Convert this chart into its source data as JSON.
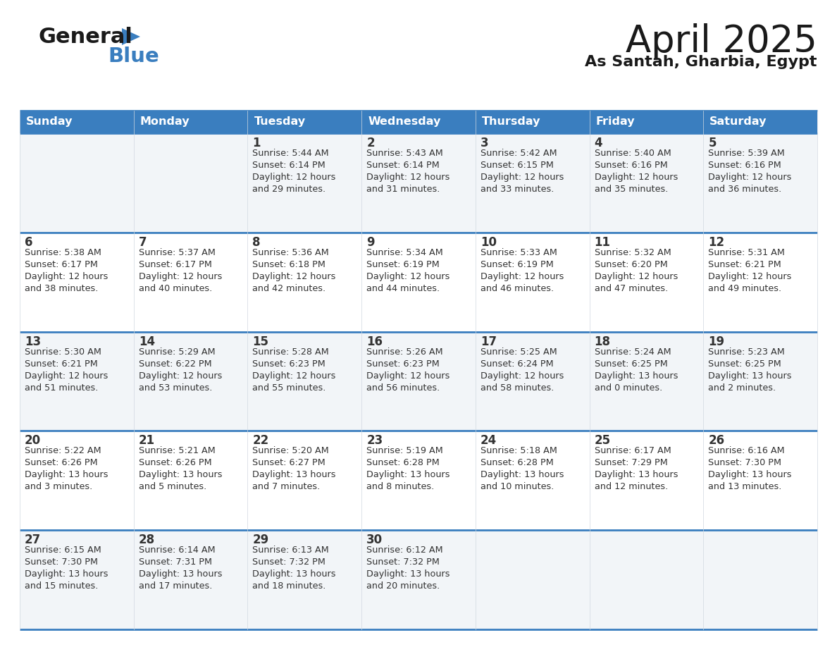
{
  "title": "April 2025",
  "subtitle": "As Santah, Gharbia, Egypt",
  "days_of_week": [
    "Sunday",
    "Monday",
    "Tuesday",
    "Wednesday",
    "Thursday",
    "Friday",
    "Saturday"
  ],
  "header_bg": "#3a7ebf",
  "header_text": "#ffffff",
  "row_bg_even": "#f2f5f8",
  "row_bg_odd": "#ffffff",
  "separator_color": "#3a7ebf",
  "text_color": "#333333",
  "title_color": "#1a1a1a",
  "subtitle_color": "#1a1a1a",
  "calendar": [
    [
      {
        "day": "",
        "info": ""
      },
      {
        "day": "",
        "info": ""
      },
      {
        "day": "1",
        "info": "Sunrise: 5:44 AM\nSunset: 6:14 PM\nDaylight: 12 hours\nand 29 minutes."
      },
      {
        "day": "2",
        "info": "Sunrise: 5:43 AM\nSunset: 6:14 PM\nDaylight: 12 hours\nand 31 minutes."
      },
      {
        "day": "3",
        "info": "Sunrise: 5:42 AM\nSunset: 6:15 PM\nDaylight: 12 hours\nand 33 minutes."
      },
      {
        "day": "4",
        "info": "Sunrise: 5:40 AM\nSunset: 6:16 PM\nDaylight: 12 hours\nand 35 minutes."
      },
      {
        "day": "5",
        "info": "Sunrise: 5:39 AM\nSunset: 6:16 PM\nDaylight: 12 hours\nand 36 minutes."
      }
    ],
    [
      {
        "day": "6",
        "info": "Sunrise: 5:38 AM\nSunset: 6:17 PM\nDaylight: 12 hours\nand 38 minutes."
      },
      {
        "day": "7",
        "info": "Sunrise: 5:37 AM\nSunset: 6:17 PM\nDaylight: 12 hours\nand 40 minutes."
      },
      {
        "day": "8",
        "info": "Sunrise: 5:36 AM\nSunset: 6:18 PM\nDaylight: 12 hours\nand 42 minutes."
      },
      {
        "day": "9",
        "info": "Sunrise: 5:34 AM\nSunset: 6:19 PM\nDaylight: 12 hours\nand 44 minutes."
      },
      {
        "day": "10",
        "info": "Sunrise: 5:33 AM\nSunset: 6:19 PM\nDaylight: 12 hours\nand 46 minutes."
      },
      {
        "day": "11",
        "info": "Sunrise: 5:32 AM\nSunset: 6:20 PM\nDaylight: 12 hours\nand 47 minutes."
      },
      {
        "day": "12",
        "info": "Sunrise: 5:31 AM\nSunset: 6:21 PM\nDaylight: 12 hours\nand 49 minutes."
      }
    ],
    [
      {
        "day": "13",
        "info": "Sunrise: 5:30 AM\nSunset: 6:21 PM\nDaylight: 12 hours\nand 51 minutes."
      },
      {
        "day": "14",
        "info": "Sunrise: 5:29 AM\nSunset: 6:22 PM\nDaylight: 12 hours\nand 53 minutes."
      },
      {
        "day": "15",
        "info": "Sunrise: 5:28 AM\nSunset: 6:23 PM\nDaylight: 12 hours\nand 55 minutes."
      },
      {
        "day": "16",
        "info": "Sunrise: 5:26 AM\nSunset: 6:23 PM\nDaylight: 12 hours\nand 56 minutes."
      },
      {
        "day": "17",
        "info": "Sunrise: 5:25 AM\nSunset: 6:24 PM\nDaylight: 12 hours\nand 58 minutes."
      },
      {
        "day": "18",
        "info": "Sunrise: 5:24 AM\nSunset: 6:25 PM\nDaylight: 13 hours\nand 0 minutes."
      },
      {
        "day": "19",
        "info": "Sunrise: 5:23 AM\nSunset: 6:25 PM\nDaylight: 13 hours\nand 2 minutes."
      }
    ],
    [
      {
        "day": "20",
        "info": "Sunrise: 5:22 AM\nSunset: 6:26 PM\nDaylight: 13 hours\nand 3 minutes."
      },
      {
        "day": "21",
        "info": "Sunrise: 5:21 AM\nSunset: 6:26 PM\nDaylight: 13 hours\nand 5 minutes."
      },
      {
        "day": "22",
        "info": "Sunrise: 5:20 AM\nSunset: 6:27 PM\nDaylight: 13 hours\nand 7 minutes."
      },
      {
        "day": "23",
        "info": "Sunrise: 5:19 AM\nSunset: 6:28 PM\nDaylight: 13 hours\nand 8 minutes."
      },
      {
        "day": "24",
        "info": "Sunrise: 5:18 AM\nSunset: 6:28 PM\nDaylight: 13 hours\nand 10 minutes."
      },
      {
        "day": "25",
        "info": "Sunrise: 6:17 AM\nSunset: 7:29 PM\nDaylight: 13 hours\nand 12 minutes."
      },
      {
        "day": "26",
        "info": "Sunrise: 6:16 AM\nSunset: 7:30 PM\nDaylight: 13 hours\nand 13 minutes."
      }
    ],
    [
      {
        "day": "27",
        "info": "Sunrise: 6:15 AM\nSunset: 7:30 PM\nDaylight: 13 hours\nand 15 minutes."
      },
      {
        "day": "28",
        "info": "Sunrise: 6:14 AM\nSunset: 7:31 PM\nDaylight: 13 hours\nand 17 minutes."
      },
      {
        "day": "29",
        "info": "Sunrise: 6:13 AM\nSunset: 7:32 PM\nDaylight: 13 hours\nand 18 minutes."
      },
      {
        "day": "30",
        "info": "Sunrise: 6:12 AM\nSunset: 7:32 PM\nDaylight: 13 hours\nand 20 minutes."
      },
      {
        "day": "",
        "info": ""
      },
      {
        "day": "",
        "info": ""
      },
      {
        "day": "",
        "info": ""
      }
    ]
  ]
}
